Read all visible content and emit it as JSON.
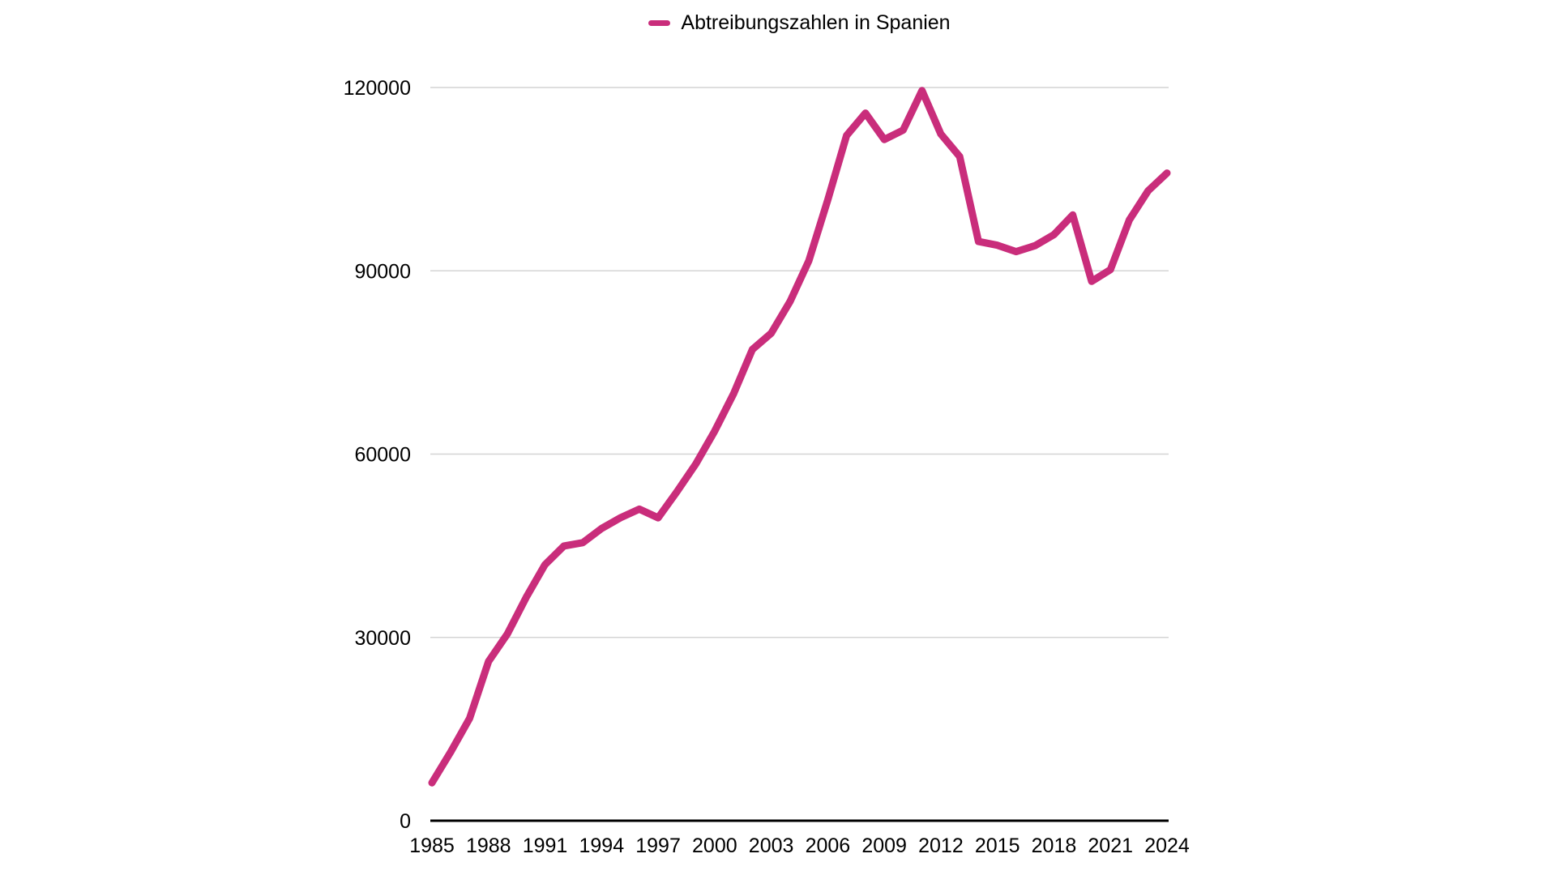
{
  "legend": {
    "label": "Abtreibungszahlen in Spanien"
  },
  "colors": {
    "series": "#C92D7B",
    "gridline": "#D4D4D4",
    "axis": "#000000",
    "text": "#000000",
    "background": "#FFFFFF"
  },
  "chart_data": {
    "type": "line",
    "title": "Abtreibungszahlen in Spanien",
    "legend_position": "top-center",
    "grid": "horizontal-only",
    "xlim": [
      1985,
      2024
    ],
    "ylim": [
      0,
      120000
    ],
    "x": [
      1985,
      1986,
      1987,
      1988,
      1989,
      1990,
      1991,
      1992,
      1993,
      1994,
      1995,
      1996,
      1997,
      1998,
      1999,
      2000,
      2001,
      2002,
      2003,
      2004,
      2005,
      2006,
      2007,
      2008,
      2009,
      2010,
      2011,
      2012,
      2013,
      2014,
      2015,
      2016,
      2017,
      2018,
      2019,
      2020,
      2021,
      2022,
      2023,
      2024
    ],
    "series": [
      {
        "name": "Abtreibungszahlen in Spanien",
        "color": "#C92D7B",
        "values": [
          6200,
          11300,
          16766,
          26069,
          30552,
          36557,
          41910,
          44962,
          45503,
          47832,
          49578,
          51002,
          49578,
          53847,
          58399,
          63756,
          69857,
          77125,
          79788,
          84985,
          91664,
          101592,
          112138,
          115812,
          111482,
          113031,
          119500,
          112390,
          108690,
          94796,
          94188,
          93131,
          94123,
          95917,
          99149,
          88269,
          90189,
          98316,
          103097,
          106000
        ]
      }
    ],
    "xticks": [
      "1985",
      "1988",
      "1991",
      "1994",
      "1997",
      "2000",
      "2003",
      "2006",
      "2009",
      "2012",
      "2015",
      "2018",
      "2021",
      "2024"
    ],
    "yticks": [
      0,
      30000,
      60000,
      90000,
      120000
    ],
    "ytick_labels": [
      "0",
      "30000",
      "60000",
      "90000",
      "120000"
    ]
  }
}
